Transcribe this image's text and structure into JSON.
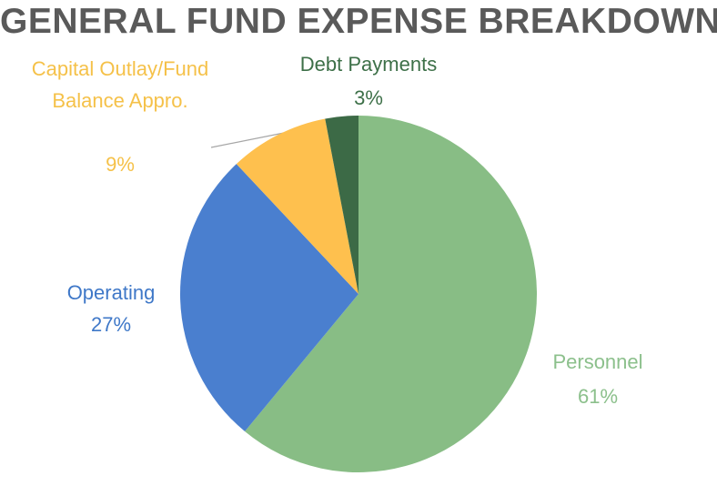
{
  "chart_data": {
    "type": "pie",
    "title": "GENERAL FUND EXPENSE BREAKDOWN",
    "categories": [
      "Personnel",
      "Operating",
      "Capital Outlay/Fund Balance Appro.",
      "Debt Payments"
    ],
    "values": [
      61,
      27,
      9,
      3
    ],
    "value_labels": [
      "61%",
      "27%",
      "9%",
      "3%"
    ],
    "colors": [
      "#88bd85",
      "#4a7fcf",
      "#fec04e",
      "#3c6a46"
    ],
    "label_colors": [
      "#8cc08c",
      "#3f78c8",
      "#f5c149",
      "#3d7048"
    ]
  }
}
